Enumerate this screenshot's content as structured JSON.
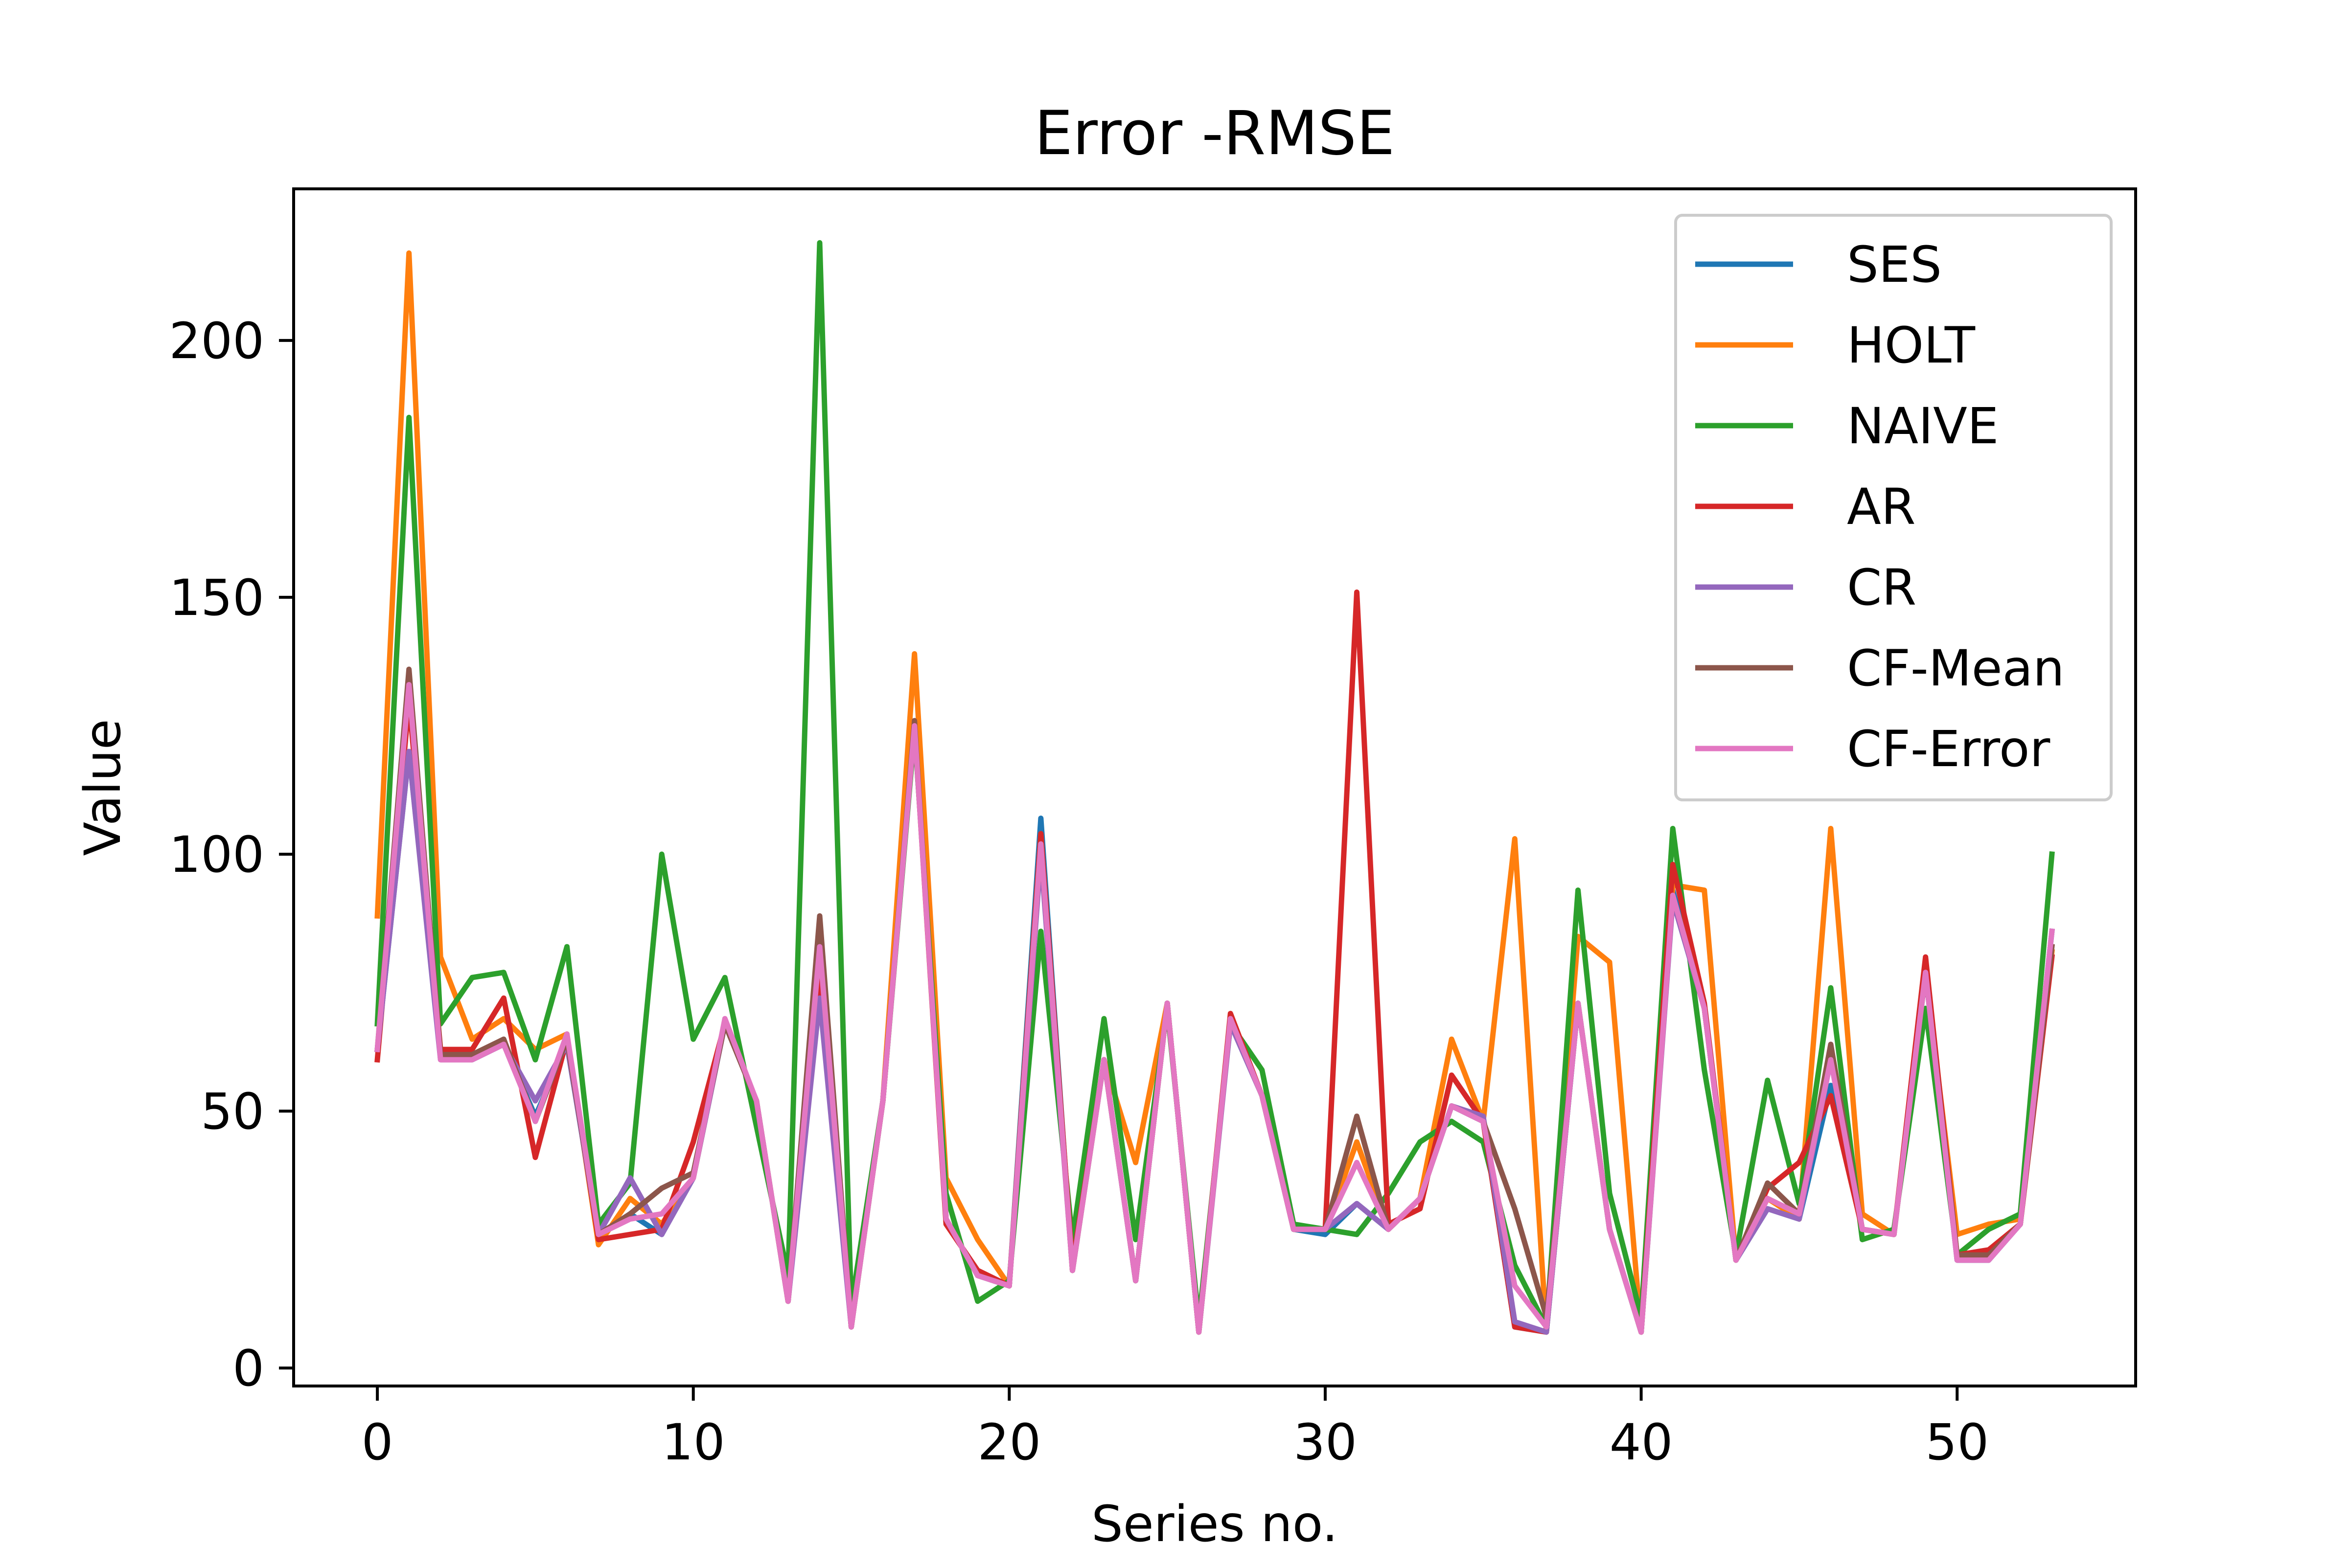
{
  "chart_data": {
    "type": "line",
    "title": "Error -RMSE",
    "xlabel": "Series no.",
    "ylabel": "Value",
    "xlim": [
      -2.65,
      55.65
    ],
    "ylim": [
      -3.5,
      229.5
    ],
    "xticks": [
      0,
      10,
      20,
      30,
      40,
      50
    ],
    "yticks": [
      0,
      50,
      100,
      150,
      200
    ],
    "grid": false,
    "legend_position": "top-right",
    "x": [
      0,
      1,
      2,
      3,
      4,
      5,
      6,
      7,
      8,
      9,
      10,
      11,
      12,
      13,
      14,
      15,
      16,
      17,
      18,
      19,
      20,
      21,
      22,
      23,
      24,
      25,
      26,
      27,
      28,
      29,
      30,
      31,
      32,
      33,
      34,
      35,
      36,
      37,
      38,
      39,
      40,
      41,
      42,
      43,
      44,
      45,
      46,
      47,
      48,
      49,
      50,
      51,
      52,
      53
    ],
    "series": [
      {
        "name": "SES",
        "color": "#1f77b4",
        "values": [
          62,
          120,
          61,
          60,
          63,
          49,
          63,
          26,
          30,
          26,
          37,
          67,
          52,
          13,
          81,
          8,
          52,
          126,
          29,
          18,
          16,
          107,
          19,
          60,
          17,
          71,
          7,
          68,
          53,
          27,
          26,
          32,
          27,
          33,
          51,
          48,
          8,
          7,
          71,
          27,
          7,
          93,
          70,
          21,
          31,
          29,
          55,
          27,
          26,
          77,
          21,
          21,
          28,
          85
        ]
      },
      {
        "name": "HOLT",
        "color": "#ff7f0e",
        "values": [
          88,
          217,
          80,
          64,
          68,
          62,
          65,
          24,
          33,
          28,
          37,
          67,
          52,
          13,
          80,
          8,
          52,
          139,
          37,
          25,
          16,
          104,
          19,
          60,
          40,
          71,
          7,
          68,
          53,
          27,
          27,
          44,
          27,
          33,
          64,
          48,
          103,
          7,
          84,
          79,
          7,
          94,
          93,
          21,
          33,
          29,
          105,
          30,
          26,
          77,
          26,
          28,
          29,
          81
        ]
      },
      {
        "name": "NAIVE",
        "color": "#2ca02c",
        "values": [
          67,
          185,
          67,
          76,
          77,
          60,
          82,
          28,
          36,
          100,
          64,
          76,
          47,
          18,
          219,
          12,
          52,
          124,
          34,
          13,
          17,
          85,
          25,
          68,
          25,
          70,
          9,
          67,
          58,
          28,
          27,
          26,
          34,
          44,
          48,
          44,
          20,
          8,
          93,
          34,
          10,
          105,
          58,
          22,
          56,
          32,
          74,
          25,
          27,
          70,
          22,
          27,
          30,
          100
        ]
      },
      {
        "name": "AR",
        "color": "#d62728",
        "values": [
          60,
          130,
          62,
          62,
          72,
          41,
          64,
          25,
          26,
          27,
          44,
          67,
          52,
          13,
          76,
          8,
          52,
          125,
          28,
          19,
          16,
          104,
          20,
          60,
          17,
          71,
          7,
          69,
          53,
          27,
          27,
          151,
          28,
          31,
          57,
          48,
          8,
          7,
          71,
          27,
          7,
          98,
          71,
          21,
          35,
          40,
          53,
          27,
          26,
          80,
          22,
          23,
          28,
          80
        ]
      },
      {
        "name": "CR",
        "color": "#9467bd",
        "values": [
          62,
          120,
          60,
          60,
          63,
          52,
          63,
          26,
          37,
          26,
          37,
          67,
          52,
          13,
          72,
          8,
          52,
          125,
          29,
          18,
          16,
          100,
          19,
          60,
          17,
          71,
          7,
          67,
          53,
          27,
          27,
          32,
          27,
          33,
          51,
          49,
          9,
          7,
          71,
          27,
          7,
          91,
          70,
          21,
          31,
          29,
          60,
          27,
          26,
          77,
          21,
          21,
          28,
          85
        ]
      },
      {
        "name": "CF-Mean",
        "color": "#8c564b",
        "values": [
          62,
          136,
          61,
          61,
          64,
          48,
          64,
          26,
          30,
          35,
          38,
          67,
          52,
          13,
          88,
          8,
          52,
          126,
          29,
          18,
          16,
          102,
          19,
          60,
          17,
          71,
          7,
          68,
          53,
          27,
          27,
          49,
          27,
          33,
          51,
          48,
          31,
          10,
          71,
          27,
          7,
          92,
          70,
          21,
          36,
          30,
          63,
          27,
          26,
          77,
          22,
          22,
          28,
          82
        ]
      },
      {
        "name": "CF-Error",
        "color": "#e377c2",
        "values": [
          62,
          133,
          60,
          60,
          63,
          48,
          65,
          26,
          29,
          30,
          37,
          68,
          52,
          13,
          82,
          8,
          52,
          125,
          29,
          18,
          16,
          102,
          19,
          60,
          17,
          71,
          7,
          68,
          53,
          27,
          27,
          40,
          27,
          33,
          51,
          48,
          16,
          8,
          71,
          27,
          7,
          92,
          70,
          21,
          33,
          30,
          60,
          27,
          26,
          77,
          21,
          21,
          28,
          85
        ]
      }
    ]
  }
}
